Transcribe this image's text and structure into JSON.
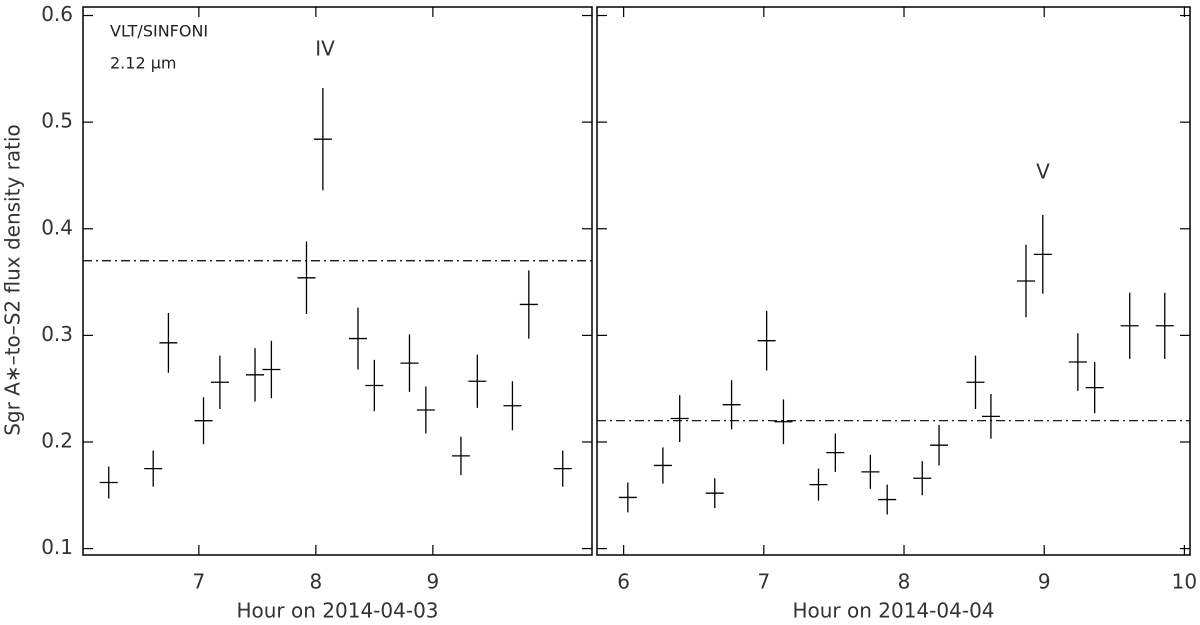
{
  "chart_data": [
    {
      "type": "errorbar",
      "x": [
        6.23,
        6.61,
        6.74,
        7.04,
        7.18,
        7.48,
        7.62,
        7.92,
        8.06,
        8.36,
        8.5,
        8.8,
        8.94,
        9.24,
        9.38,
        9.68,
        9.82,
        10.11
      ],
      "values": [
        0.162,
        0.175,
        0.293,
        0.22,
        0.256,
        0.263,
        0.268,
        0.354,
        0.484,
        0.297,
        0.253,
        0.274,
        0.23,
        0.187,
        0.257,
        0.234,
        0.329,
        0.175
      ],
      "errors": [
        0.015,
        0.017,
        0.028,
        0.022,
        0.025,
        0.025,
        0.027,
        0.034,
        0.048,
        0.029,
        0.024,
        0.027,
        0.022,
        0.018,
        0.025,
        0.023,
        0.032,
        0.017
      ],
      "color": "#000000",
      "reference_line": 0.37,
      "xlim": [
        6.01,
        10.36
      ],
      "xticks": [
        7,
        8,
        9
      ],
      "ylim": [
        0.094,
        0.608
      ],
      "yticks": [
        0.1,
        0.2,
        0.3,
        0.4,
        0.5,
        0.6
      ],
      "xlabel": "Hour on 2014-04-03",
      "ylabel": "Sgr A∗–to–S2 flux density ratio",
      "annotations": [
        "VLT/SINFONI",
        "2.12 μm",
        "IV"
      ]
    },
    {
      "type": "errorbar",
      "x": [
        6.03,
        6.28,
        6.4,
        6.65,
        6.77,
        7.02,
        7.14,
        7.39,
        7.51,
        7.76,
        7.88,
        8.13,
        8.25,
        8.51,
        8.62,
        8.87,
        8.99,
        9.24,
        9.36,
        9.61,
        9.86
      ],
      "values": [
        0.148,
        0.178,
        0.222,
        0.152,
        0.235,
        0.295,
        0.219,
        0.16,
        0.19,
        0.172,
        0.146,
        0.166,
        0.197,
        0.256,
        0.224,
        0.351,
        0.376,
        0.275,
        0.251,
        0.309,
        0.309
      ],
      "errors": [
        0.014,
        0.017,
        0.022,
        0.014,
        0.023,
        0.028,
        0.021,
        0.015,
        0.018,
        0.016,
        0.014,
        0.016,
        0.019,
        0.025,
        0.021,
        0.034,
        0.037,
        0.027,
        0.024,
        0.031,
        0.031
      ],
      "color": "#000000",
      "reference_line": 0.22,
      "xlim": [
        5.81,
        10.04
      ],
      "xticks": [
        6,
        7,
        8,
        9,
        10
      ],
      "ylim": [
        0.094,
        0.608
      ],
      "xlabel": "Hour on 2014-04-04",
      "annotations": [
        "V"
      ]
    }
  ]
}
